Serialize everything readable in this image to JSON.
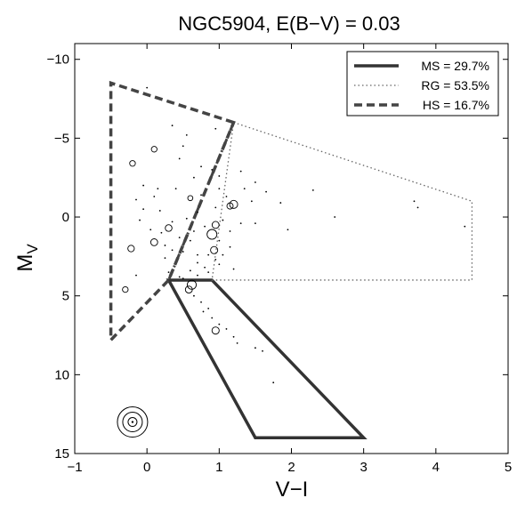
{
  "chart_data": {
    "type": "scatter",
    "title": "NGC5904,  E(B−V) = 0.03",
    "xlabel": "V−I",
    "ylabel_main": "M",
    "ylabel_sub": "V",
    "xlim": [
      -1,
      5
    ],
    "ylim": [
      15,
      -11
    ],
    "y_reversed": true,
    "grid": false,
    "x_ticks": [
      -1,
      0,
      1,
      2,
      3,
      4,
      5
    ],
    "y_ticks": [
      15,
      10,
      5,
      0,
      -5,
      -10
    ],
    "x_tick_labels": [
      "−1",
      "0",
      "1",
      "2",
      "3",
      "4",
      "5"
    ],
    "y_tick_labels": [
      "15",
      "10",
      "5",
      "0",
      "−5",
      "−10"
    ],
    "legend_position": "top-right",
    "legend": [
      {
        "label": "MS = 29.7%",
        "style": "solid"
      },
      {
        "label": "RG = 53.5%",
        "style": "dotted"
      },
      {
        "label": "HS = 16.7%",
        "style": "dashed"
      }
    ],
    "regions": [
      {
        "name": "MS",
        "style": "solid",
        "points": [
          [
            0.3,
            4
          ],
          [
            0.9,
            4
          ],
          [
            3.0,
            14
          ],
          [
            1.5,
            14
          ]
        ]
      },
      {
        "name": "RG",
        "style": "dotted",
        "points": [
          [
            1.2,
            -6
          ],
          [
            4.5,
            -1
          ],
          [
            4.5,
            4
          ],
          [
            0.9,
            4
          ]
        ]
      },
      {
        "name": "HS",
        "style": "dashed",
        "points": [
          [
            1.2,
            -6
          ],
          [
            -0.5,
            -8.5
          ],
          [
            -0.5,
            7.8
          ],
          [
            0.3,
            4
          ]
        ]
      },
      {
        "name": "boundary",
        "style": "dashdot",
        "points": [
          [
            1.2,
            -6
          ],
          [
            0.3,
            4
          ]
        ]
      }
    ],
    "circles": [
      {
        "x": -0.2,
        "y": -3.4,
        "size": 1
      },
      {
        "x": 0.1,
        "y": -4.3,
        "size": 1
      },
      {
        "x": 0.6,
        "y": -1.2,
        "size": 0.8
      },
      {
        "x": 1.2,
        "y": -0.8,
        "size": 2
      },
      {
        "x": 1.15,
        "y": -0.7,
        "size": 1.2
      },
      {
        "x": 0.95,
        "y": 0.5,
        "size": 1.5
      },
      {
        "x": 0.3,
        "y": 0.7,
        "size": 1.4
      },
      {
        "x": 0.9,
        "y": 1.1,
        "size": 3
      },
      {
        "x": 0.1,
        "y": 1.6,
        "size": 1.5
      },
      {
        "x": -0.22,
        "y": 2.0,
        "size": 1.3
      },
      {
        "x": 0.93,
        "y": 2.1,
        "size": 1.6
      },
      {
        "x": 0.62,
        "y": 4.3,
        "size": 2.5
      },
      {
        "x": 0.58,
        "y": 4.6,
        "size": 1.5
      },
      {
        "x": -0.3,
        "y": 4.6,
        "size": 1
      },
      {
        "x": 0.95,
        "y": 7.2,
        "size": 1.6
      }
    ],
    "dots": [
      [
        0.0,
        -8.2
      ],
      [
        0.35,
        -5.8
      ],
      [
        0.55,
        -5.2
      ],
      [
        0.95,
        -5.6
      ],
      [
        0.5,
        -4.5
      ],
      [
        0.45,
        -3.7
      ],
      [
        0.75,
        -3.2
      ],
      [
        0.9,
        -3.0
      ],
      [
        1.0,
        -2.6
      ],
      [
        0.65,
        -2.5
      ],
      [
        1.3,
        -2.9
      ],
      [
        1.5,
        -2.2
      ],
      [
        1.35,
        -1.8
      ],
      [
        1.65,
        -1.6
      ],
      [
        2.3,
        -1.7
      ],
      [
        1.1,
        -1.3
      ],
      [
        1.45,
        -1.0
      ],
      [
        1.85,
        -0.9
      ],
      [
        0.95,
        -0.6
      ],
      [
        0.7,
        -0.3
      ],
      [
        0.55,
        0.1
      ],
      [
        1.05,
        0.2
      ],
      [
        1.5,
        0.4
      ],
      [
        0.35,
        0.3
      ],
      [
        0.8,
        0.6
      ],
      [
        1.3,
        0.4
      ],
      [
        0.45,
        1.3
      ],
      [
        0.2,
        1.0
      ],
      [
        -0.1,
        0.2
      ],
      [
        -0.05,
        -0.5
      ],
      [
        -0.15,
        -1.1
      ],
      [
        -0.05,
        -2.0
      ],
      [
        0.1,
        -1.3
      ],
      [
        0.18,
        -0.4
      ],
      [
        0.05,
        0.8
      ],
      [
        0.6,
        1.5
      ],
      [
        1.0,
        1.5
      ],
      [
        1.15,
        1.9
      ],
      [
        1.95,
        0.8
      ],
      [
        2.6,
        0.0
      ],
      [
        3.7,
        -1.0
      ],
      [
        3.75,
        -0.6
      ],
      [
        4.4,
        0.6
      ],
      [
        0.85,
        2.4
      ],
      [
        1.05,
        2.4
      ],
      [
        0.95,
        2.7
      ],
      [
        0.5,
        2.2
      ],
      [
        0.25,
        2.6
      ],
      [
        0.7,
        2.9
      ],
      [
        1.0,
        3.0
      ],
      [
        0.8,
        3.2
      ],
      [
        0.85,
        3.5
      ],
      [
        0.6,
        3.4
      ],
      [
        0.7,
        3.7
      ],
      [
        0.5,
        3.9
      ],
      [
        0.3,
        3.5
      ],
      [
        0.45,
        3.8
      ],
      [
        1.2,
        3.3
      ],
      [
        0.65,
        5.0
      ],
      [
        0.75,
        5.4
      ],
      [
        0.85,
        5.8
      ],
      [
        0.78,
        6.0
      ],
      [
        0.9,
        6.4
      ],
      [
        1.0,
        6.8
      ],
      [
        1.1,
        7.1
      ],
      [
        1.2,
        7.6
      ],
      [
        1.25,
        8.0
      ],
      [
        1.5,
        8.3
      ],
      [
        1.6,
        8.5
      ],
      [
        1.75,
        10.5
      ],
      [
        -0.15,
        3.7
      ],
      [
        0.25,
        1.8
      ],
      [
        0.15,
        -1.8
      ],
      [
        0.4,
        -1.8
      ],
      [
        0.75,
        -1.4
      ],
      [
        1.0,
        -1.8
      ],
      [
        0.65,
        0.9
      ],
      [
        1.15,
        0.9
      ],
      [
        0.35,
        2.1
      ],
      [
        0.7,
        2.4
      ]
    ],
    "symbol_key": {
      "x": -0.2,
      "y": 13,
      "rings": 3
    }
  }
}
